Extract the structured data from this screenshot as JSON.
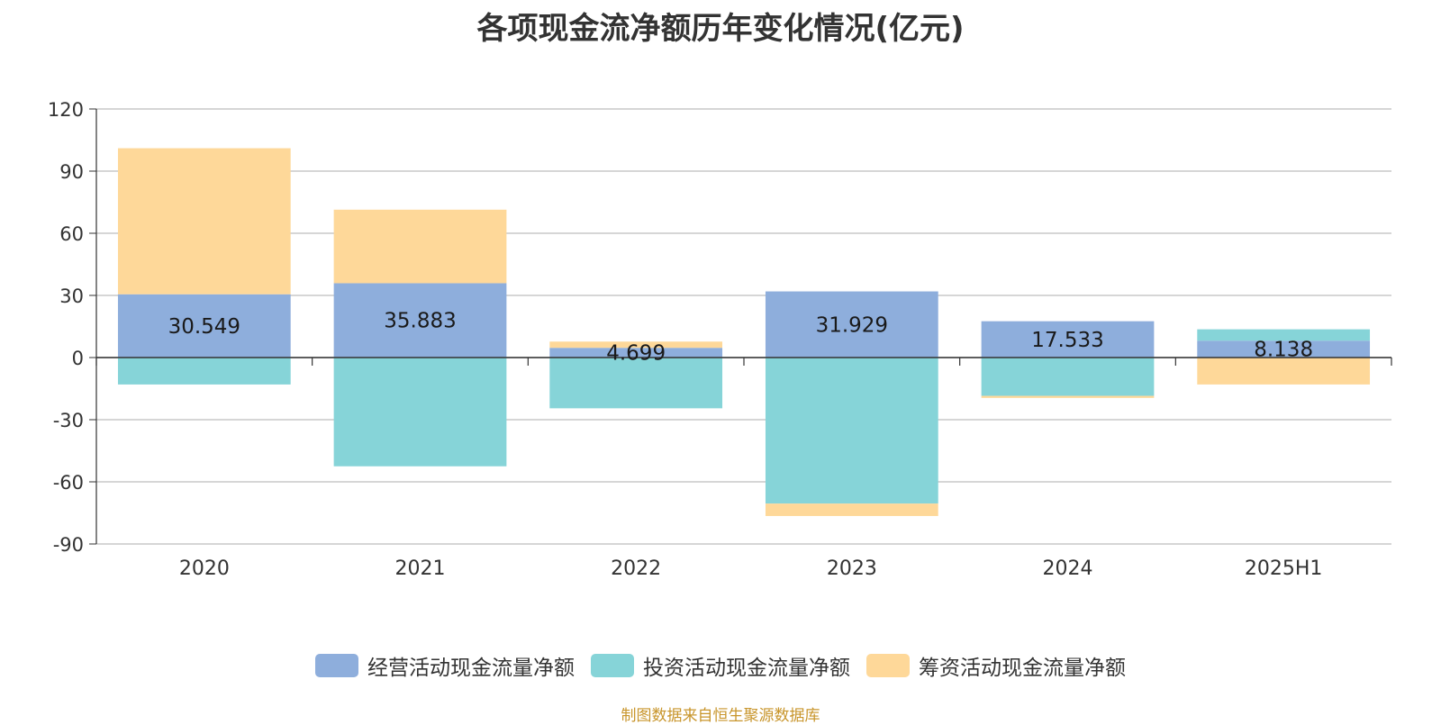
{
  "title": "各项现金流净额历年变化情况(亿元)",
  "source": "制图数据来自恒生聚源数据库",
  "chart_data": {
    "type": "bar",
    "stacked": true,
    "categories": [
      "2020",
      "2021",
      "2022",
      "2023",
      "2024",
      "2025H1"
    ],
    "series": [
      {
        "name": "经营活动现金流量净额",
        "color": "#8eaedc",
        "values": [
          30.549,
          35.883,
          4.699,
          31.929,
          17.533,
          8.138
        ]
      },
      {
        "name": "投资活动现金流量净额",
        "color": "#86d4d8",
        "values": [
          -13,
          -52.5,
          -24.5,
          -70.5,
          -18.5,
          5.5
        ]
      },
      {
        "name": "筹资活动现金流量净额",
        "color": "#fed899",
        "values": [
          70.5,
          35.5,
          3,
          -6,
          -1,
          -13
        ]
      }
    ],
    "data_labels": [
      "30.549",
      "35.883",
      "4.699",
      "31.929",
      "17.533",
      "8.138"
    ],
    "ylim": [
      -90,
      120
    ],
    "yticks": [
      120,
      90,
      60,
      30,
      0,
      -30,
      -60,
      -90
    ],
    "grid": true,
    "legend_position": "bottom"
  }
}
